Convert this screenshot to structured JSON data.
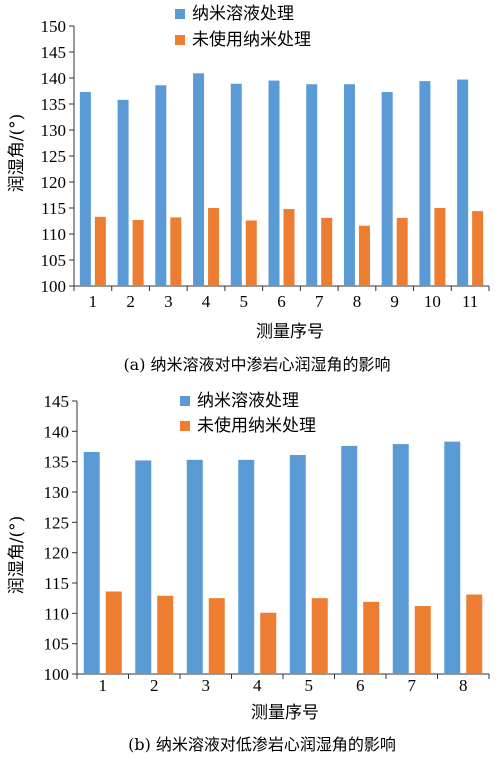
{
  "chart_data": [
    {
      "type": "bar",
      "caption": "(a) 纳米溶液对中渗岩心润湿角的影响",
      "xlabel": "测量序号",
      "ylabel": "润湿角/(°)",
      "ylim": [
        100,
        150
      ],
      "yticks": [
        100,
        105,
        110,
        115,
        120,
        125,
        130,
        135,
        140,
        145,
        150
      ],
      "categories": [
        "1",
        "2",
        "3",
        "4",
        "5",
        "6",
        "7",
        "8",
        "9",
        "10",
        "11"
      ],
      "legend_position": "top-center",
      "series": [
        {
          "name": "纳米溶液处理",
          "color": "#5b9bd5",
          "values": [
            137.3,
            135.8,
            138.6,
            140.9,
            138.9,
            139.5,
            138.8,
            138.8,
            137.3,
            139.4,
            139.7
          ]
        },
        {
          "name": "未使用纳米处理",
          "color": "#ed7d31",
          "values": [
            113.3,
            112.7,
            113.2,
            115.0,
            112.6,
            114.8,
            113.1,
            111.6,
            113.1,
            115.0,
            114.4
          ]
        }
      ]
    },
    {
      "type": "bar",
      "caption": "(b) 纳米溶液对低渗岩心润湿角的影响",
      "xlabel": "测量序号",
      "ylabel": "润湿角/(°)",
      "ylim": [
        100,
        145
      ],
      "yticks": [
        100,
        105,
        110,
        115,
        120,
        125,
        130,
        135,
        140,
        145
      ],
      "categories": [
        "1",
        "2",
        "3",
        "4",
        "5",
        "6",
        "7",
        "8"
      ],
      "legend_position": "top-center",
      "series": [
        {
          "name": "纳米溶液处理",
          "color": "#5b9bd5",
          "values": [
            136.6,
            135.2,
            135.3,
            135.3,
            136.1,
            137.6,
            137.9,
            138.3
          ]
        },
        {
          "name": "未使用纳米处理",
          "color": "#ed7d31",
          "values": [
            113.6,
            112.9,
            112.5,
            110.1,
            112.5,
            111.9,
            111.2,
            113.1
          ]
        }
      ]
    }
  ]
}
